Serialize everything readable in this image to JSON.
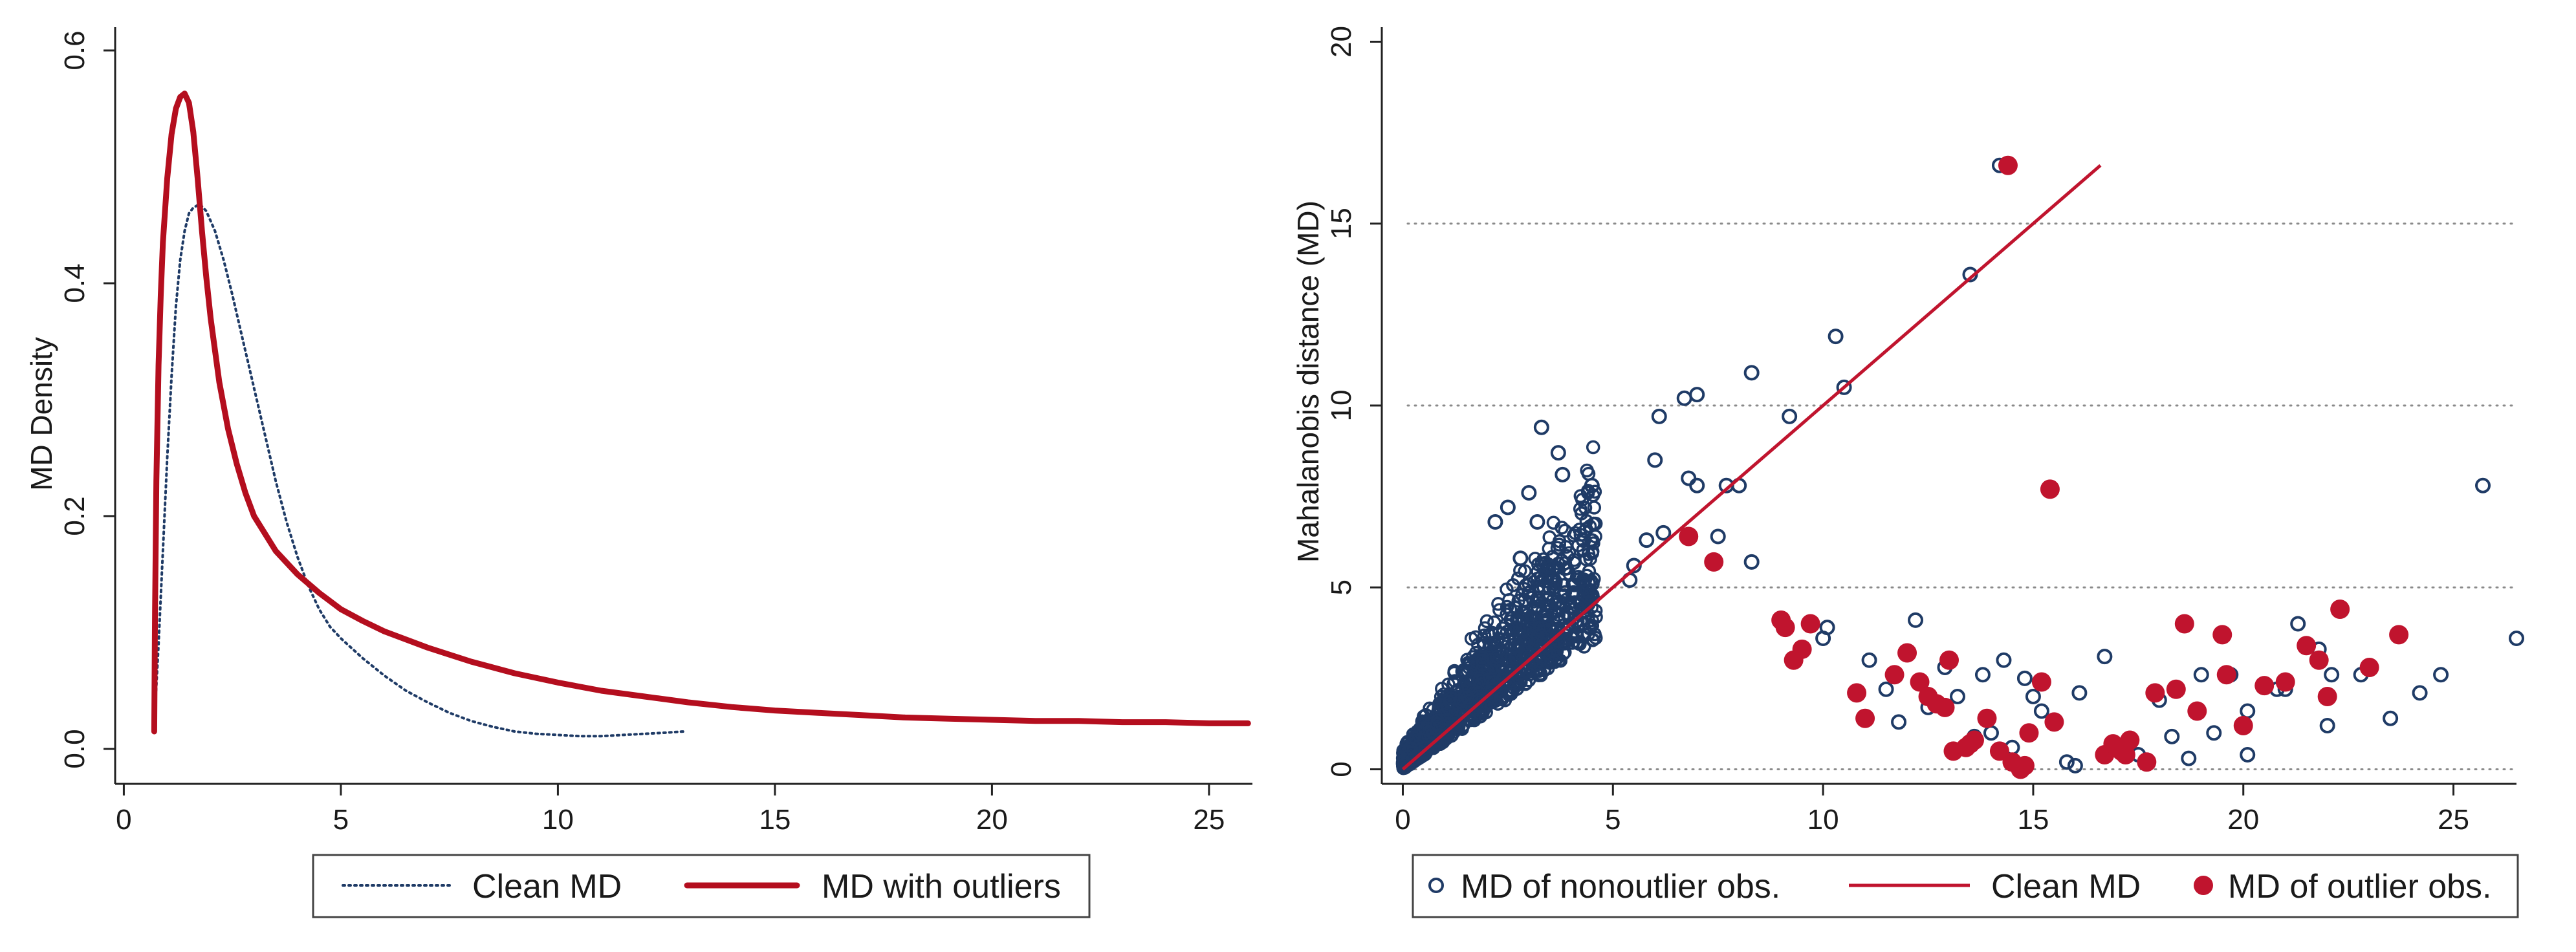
{
  "chart_data": [
    {
      "type": "line",
      "title": "",
      "xlabel": "",
      "ylabel": "MD Density",
      "xlim": [
        -0.2,
        26
      ],
      "ylim": [
        -0.03,
        0.62
      ],
      "xticks": [
        0,
        5,
        10,
        15,
        20,
        25
      ],
      "yticks": [
        0.0,
        0.2,
        0.4,
        0.6
      ],
      "xtick_labels": [
        "0",
        "5",
        "10",
        "15",
        "20",
        "25"
      ],
      "ytick_labels": [
        "0.0",
        "0.2",
        "0.4",
        "0.6"
      ],
      "grid": false,
      "legend_position": "bottom",
      "colors": {
        "clean": "#1f3b66",
        "outliers": "#b40e1e"
      },
      "series": [
        {
          "name": "Clean MD",
          "style": "dotted",
          "x": [
            0.7,
            0.8,
            0.9,
            1.0,
            1.1,
            1.2,
            1.3,
            1.4,
            1.5,
            1.6,
            1.75,
            1.9,
            2.1,
            2.3,
            2.5,
            2.75,
            3.0,
            3.25,
            3.5,
            3.75,
            4.0,
            4.25,
            4.5,
            4.75,
            5.0,
            5.5,
            6.0,
            6.5,
            7.0,
            7.5,
            8.0,
            8.5,
            9.0,
            9.5,
            10.0,
            10.5,
            11.0,
            11.5,
            12.0,
            12.5,
            12.9
          ],
          "y": [
            0.02,
            0.09,
            0.17,
            0.25,
            0.32,
            0.38,
            0.42,
            0.445,
            0.46,
            0.465,
            0.468,
            0.462,
            0.445,
            0.42,
            0.39,
            0.35,
            0.31,
            0.27,
            0.23,
            0.195,
            0.165,
            0.14,
            0.12,
            0.105,
            0.095,
            0.078,
            0.063,
            0.05,
            0.04,
            0.031,
            0.024,
            0.019,
            0.015,
            0.013,
            0.012,
            0.011,
            0.011,
            0.012,
            0.013,
            0.014,
            0.015
          ]
        },
        {
          "name": "MD with outliers",
          "style": "solid",
          "x": [
            0.7,
            0.72,
            0.75,
            0.8,
            0.85,
            0.9,
            1.0,
            1.1,
            1.2,
            1.3,
            1.4,
            1.5,
            1.6,
            1.7,
            1.8,
            1.9,
            2.0,
            2.2,
            2.4,
            2.6,
            2.8,
            3.0,
            3.5,
            4.0,
            4.5,
            5.0,
            5.5,
            6.0,
            7.0,
            8.0,
            9.0,
            10.0,
            11.0,
            12.0,
            13.0,
            14.0,
            15.0,
            16.0,
            17.0,
            18.0,
            19.0,
            20.0,
            21.0,
            22.0,
            23.0,
            24.0,
            25.0,
            25.9
          ],
          "y": [
            0.015,
            0.12,
            0.23,
            0.33,
            0.39,
            0.435,
            0.49,
            0.528,
            0.55,
            0.56,
            0.563,
            0.555,
            0.53,
            0.49,
            0.445,
            0.405,
            0.37,
            0.315,
            0.275,
            0.245,
            0.22,
            0.2,
            0.17,
            0.15,
            0.134,
            0.12,
            0.11,
            0.101,
            0.087,
            0.075,
            0.065,
            0.057,
            0.05,
            0.045,
            0.04,
            0.036,
            0.033,
            0.031,
            0.029,
            0.027,
            0.026,
            0.025,
            0.024,
            0.024,
            0.023,
            0.023,
            0.022,
            0.022
          ]
        }
      ]
    },
    {
      "type": "scatter",
      "title": "",
      "xlabel": "",
      "ylabel": "Mahalanobis distance (MD)",
      "xlim": [
        -0.5,
        26.5
      ],
      "ylim": [
        -0.4,
        20.4
      ],
      "xticks": [
        0,
        5,
        10,
        15,
        20,
        25
      ],
      "yticks": [
        0,
        5,
        10,
        15,
        20
      ],
      "xtick_labels": [
        "0",
        "5",
        "10",
        "15",
        "20",
        "25"
      ],
      "ytick_labels": [
        "0",
        "5",
        "10",
        "15",
        "20"
      ],
      "grid": "horizontal-dotted",
      "legend_position": "bottom",
      "colors": {
        "nonoutlier": "#1f3b66",
        "clean_line": "#c0142e",
        "outlier": "#c0142e"
      },
      "series": [
        {
          "name": "MD of nonoutlier obs.",
          "marker": "hollow-circle",
          "x": [
            14.2,
            13.5,
            10.3,
            8.3,
            10.5,
            7.0,
            6.7,
            9.2,
            8.0,
            6.1,
            3.3,
            4.5,
            3.7,
            3.8,
            4.3,
            3.0,
            2.2,
            2.5,
            6.0,
            6.8,
            7.0,
            7.7,
            4.3,
            2.8,
            3.2,
            3.5,
            8.3,
            7.5,
            5.5,
            5.8,
            6.2,
            5.4,
            4.5,
            4.4,
            10.1,
            10.0,
            11.1,
            11.5,
            12.2,
            13.2,
            13.8,
            14.3,
            14.8,
            15.0,
            16.1,
            16.7,
            18.0,
            18.7,
            19.0,
            19.7,
            20.1,
            20.8,
            21.3,
            21.8,
            22.0,
            22.8,
            23.5,
            24.2,
            24.7,
            25.7,
            26.5,
            20.1,
            22.1,
            12.5,
            11.8,
            13.6,
            14.0,
            15.8,
            16.0,
            17.5,
            18.3,
            21.0,
            19.3,
            12.9,
            15.2,
            14.5
          ],
          "y": [
            16.6,
            13.6,
            11.9,
            10.9,
            10.5,
            10.3,
            10.2,
            9.7,
            7.8,
            9.7,
            9.4,
            7.8,
            8.7,
            8.1,
            6.3,
            7.6,
            6.8,
            7.2,
            8.5,
            8.0,
            7.8,
            7.8,
            5.2,
            5.8,
            6.8,
            5.0,
            5.7,
            6.4,
            5.6,
            6.3,
            6.5,
            5.2,
            5.1,
            4.9,
            3.9,
            3.6,
            3.0,
            2.2,
            4.1,
            2.0,
            2.6,
            3.0,
            2.5,
            2.0,
            2.1,
            3.1,
            1.9,
            0.3,
            2.6,
            2.6,
            0.4,
            2.2,
            4.0,
            3.3,
            1.2,
            2.6,
            1.4,
            2.1,
            2.6,
            7.8,
            3.6,
            1.6,
            2.6,
            1.7,
            1.3,
            0.9,
            1.0,
            0.2,
            0.1,
            0.4,
            0.9,
            2.2,
            1.0,
            2.8,
            1.6,
            0.6
          ]
        },
        {
          "name": "Clean MD",
          "marker": "line",
          "x": [
            0,
            16.6
          ],
          "y": [
            0,
            16.6
          ]
        },
        {
          "name": "MD of outlier obs.",
          "marker": "filled-circle",
          "x": [
            14.4,
            15.4,
            6.8,
            7.4,
            9.1,
            9.0,
            9.3,
            9.5,
            9.7,
            10.8,
            11.0,
            11.7,
            12.0,
            12.3,
            12.5,
            12.7,
            13.0,
            13.1,
            13.4,
            13.6,
            13.9,
            14.2,
            14.5,
            14.7,
            14.9,
            15.2,
            15.5,
            16.7,
            16.9,
            17.1,
            17.3,
            17.7,
            17.9,
            18.4,
            18.6,
            18.9,
            19.5,
            19.6,
            20.0,
            20.5,
            21.0,
            21.5,
            21.8,
            22.0,
            22.3,
            23.0,
            23.7,
            17.0,
            17.2,
            14.8,
            12.9,
            13.5
          ],
          "y": [
            16.6,
            7.7,
            6.4,
            5.7,
            3.9,
            4.1,
            3.0,
            3.3,
            4.0,
            2.1,
            1.4,
            2.6,
            3.2,
            2.4,
            2.0,
            1.8,
            3.0,
            0.5,
            0.6,
            0.8,
            1.4,
            0.5,
            0.2,
            0.0,
            1.0,
            2.4,
            1.3,
            0.4,
            0.7,
            0.5,
            0.8,
            0.2,
            2.1,
            2.2,
            4.0,
            1.6,
            3.7,
            2.6,
            1.2,
            2.3,
            2.4,
            3.4,
            3.0,
            2.0,
            4.4,
            2.8,
            3.7,
            0.6,
            0.4,
            0.1,
            1.7,
            0.7
          ]
        }
      ]
    }
  ]
}
